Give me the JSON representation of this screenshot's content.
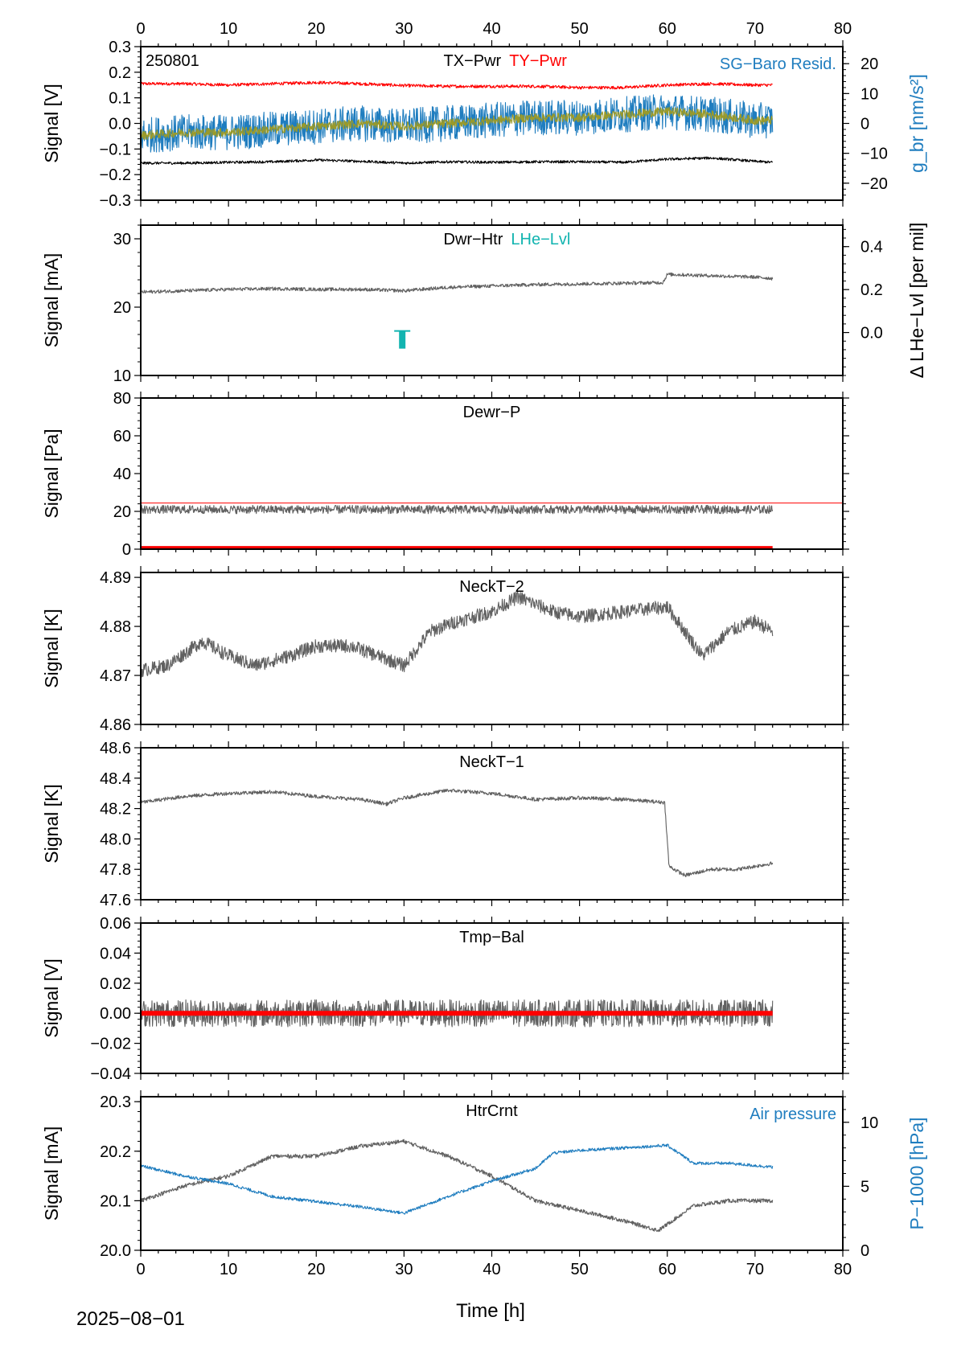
{
  "page": {
    "date_label": "2025−08−01",
    "x_axis_label": "Time [h]",
    "station_code": "250801"
  },
  "colors": {
    "gray": "#606060",
    "red": "#ff0000",
    "blue": "#1f7dbf",
    "teal": "#12b4b0",
    "olive": "#9a9a2a",
    "black": "#000000"
  },
  "chart_data": [
    {
      "id": "p1",
      "type": "line",
      "title_parts": [
        {
          "text": "TX−Pwr",
          "color": "black"
        },
        {
          "text": "TY−Pwr",
          "color": "red"
        }
      ],
      "ylabel": "Signal [V]",
      "ylim": [
        -0.3,
        0.3
      ],
      "yticks": [
        -0.3,
        -0.2,
        -0.1,
        0.0,
        0.1,
        0.2,
        0.3
      ],
      "ytick_labels": [
        "−0.3",
        "−0.2",
        "−0.1",
        "0.0",
        "0.1",
        "0.2",
        "0.3"
      ],
      "ylabel2": "g_br [nm/s²]",
      "y2lim": [
        -25.7,
        25.7
      ],
      "y2ticks": [
        -20,
        -10,
        0,
        10,
        20
      ],
      "y2tick_labels": [
        "−20",
        "−10",
        "0",
        "10",
        "20"
      ],
      "right_legend": "SG−Baro Resid.",
      "corner_text": "250801",
      "xlim": [
        0,
        80
      ],
      "series": [
        {
          "name": "TY−Pwr",
          "color": "red",
          "axis": "left",
          "x": [
            0,
            5,
            10,
            15,
            20,
            25,
            30,
            35,
            40,
            45,
            50,
            55,
            60,
            65,
            70,
            72
          ],
          "y": [
            0.155,
            0.155,
            0.15,
            0.155,
            0.16,
            0.155,
            0.148,
            0.145,
            0.145,
            0.145,
            0.14,
            0.14,
            0.15,
            0.155,
            0.15,
            0.15
          ],
          "noise": 0.006
        },
        {
          "name": "TX−Pwr",
          "color": "black",
          "axis": "left",
          "x": [
            0,
            5,
            10,
            15,
            20,
            25,
            30,
            35,
            40,
            45,
            50,
            55,
            60,
            65,
            70,
            72
          ],
          "y": [
            -0.155,
            -0.155,
            -0.152,
            -0.15,
            -0.143,
            -0.148,
            -0.155,
            -0.15,
            -0.152,
            -0.15,
            -0.15,
            -0.152,
            -0.14,
            -0.135,
            -0.148,
            -0.152
          ],
          "noise": 0.005
        },
        {
          "name": "SG−Baro Resid.",
          "color": "blue",
          "axis": "right",
          "x": [
            0,
            5,
            10,
            15,
            20,
            25,
            30,
            35,
            40,
            45,
            50,
            55,
            60,
            65,
            70,
            72
          ],
          "y": [
            -4,
            -3,
            -3,
            -2,
            -1,
            0,
            -1,
            0,
            1,
            2,
            2,
            3,
            4,
            3,
            1,
            1
          ],
          "noise": 6
        },
        {
          "name": "fit",
          "color": "olive",
          "axis": "right",
          "x": [
            0,
            5,
            10,
            15,
            20,
            25,
            30,
            35,
            40,
            45,
            50,
            55,
            60,
            65,
            70,
            72
          ],
          "y": [
            -4,
            -3,
            -3,
            -2,
            -1,
            0,
            -1,
            0,
            1,
            2,
            2,
            3,
            4,
            3,
            1,
            1
          ],
          "noise": 1.5
        }
      ]
    },
    {
      "id": "p2",
      "type": "line",
      "title_parts": [
        {
          "text": "Dwr−Htr",
          "color": "black"
        },
        {
          "text": "LHe−Lvl",
          "color": "teal"
        }
      ],
      "ylabel": "Signal [mA]",
      "ylim": [
        10,
        32
      ],
      "yticks": [
        10,
        20,
        30
      ],
      "ytick_labels": [
        "10",
        "20",
        "30"
      ],
      "ylabel2": "Δ LHe−Lvl [per mil]",
      "y2lim": [
        -0.2,
        0.5
      ],
      "y2ticks": [
        0.0,
        0.2,
        0.4
      ],
      "y2tick_labels": [
        "0.0",
        "0.2",
        "0.4"
      ],
      "xlim": [
        0,
        80
      ],
      "series": [
        {
          "name": "Dwr−Htr",
          "color": "gray",
          "axis": "left",
          "x": [
            0,
            5,
            10,
            15,
            20,
            25,
            30,
            35,
            40,
            45,
            50,
            55,
            59.5,
            60,
            65,
            70,
            72
          ],
          "y": [
            22.2,
            22.4,
            22.6,
            22.7,
            22.6,
            22.6,
            22.4,
            22.9,
            23.1,
            23.3,
            23.4,
            23.5,
            23.6,
            24.8,
            24.6,
            24.4,
            24.2
          ],
          "noise": 0.25
        },
        {
          "name": "LHe−Lvl",
          "color": "teal",
          "axis": "right",
          "x": [
            29.8
          ],
          "y": [
            -0.06
          ]
        }
      ]
    },
    {
      "id": "p3",
      "type": "line",
      "title_parts": [
        {
          "text": "Dewr−P",
          "color": "black"
        }
      ],
      "ylabel": "Signal [Pa]",
      "ylim": [
        0,
        80
      ],
      "yticks": [
        0,
        20,
        40,
        60,
        80
      ],
      "ytick_labels": [
        "0",
        "20",
        "40",
        "60",
        "80"
      ],
      "xlim": [
        0,
        80
      ],
      "threshold": 24.4,
      "series": [
        {
          "name": "Dewr−P",
          "color": "gray",
          "axis": "left",
          "x": [
            0,
            72
          ],
          "y": [
            21,
            21
          ],
          "noise": 2.2
        },
        {
          "name": "zero",
          "color": "red",
          "axis": "left",
          "x": [
            0,
            72
          ],
          "y": [
            0.4,
            0.4
          ]
        }
      ]
    },
    {
      "id": "p4",
      "type": "line",
      "title_parts": [
        {
          "text": "NeckT−2",
          "color": "black"
        }
      ],
      "ylabel": "Signal [K]",
      "ylim": [
        4.86,
        4.891
      ],
      "yticks": [
        4.86,
        4.87,
        4.88,
        4.89
      ],
      "ytick_labels": [
        "4.86",
        "4.87",
        "4.88",
        "4.89"
      ],
      "xlim": [
        0,
        80
      ],
      "series": [
        {
          "name": "NeckT−2",
          "color": "gray",
          "axis": "left",
          "x": [
            0,
            3,
            7,
            10,
            13,
            17,
            20,
            24,
            27,
            30,
            33,
            36,
            40,
            43,
            47,
            50,
            55,
            60,
            62,
            64,
            67,
            70,
            72
          ],
          "y": [
            4.871,
            4.872,
            4.877,
            4.874,
            4.872,
            4.874,
            4.876,
            4.876,
            4.874,
            4.872,
            4.879,
            4.881,
            4.883,
            4.886,
            4.883,
            4.882,
            4.883,
            4.884,
            4.879,
            4.874,
            4.879,
            4.881,
            4.879
          ],
          "noise": 0.0014
        }
      ]
    },
    {
      "id": "p5",
      "type": "line",
      "title_parts": [
        {
          "text": "NeckT−1",
          "color": "black"
        }
      ],
      "ylabel": "Signal [K]",
      "ylim": [
        47.6,
        48.6
      ],
      "yticks": [
        47.6,
        47.8,
        48.0,
        48.2,
        48.4,
        48.6
      ],
      "ytick_labels": [
        "47.6",
        "47.8",
        "48.0",
        "48.2",
        "48.4",
        "48.6"
      ],
      "xlim": [
        0,
        80
      ],
      "series": [
        {
          "name": "NeckT−1",
          "color": "gray",
          "axis": "left",
          "x": [
            0,
            5,
            10,
            15,
            20,
            25,
            28,
            30,
            35,
            40,
            45,
            50,
            55,
            59.7,
            60.2,
            62,
            65,
            68,
            70,
            72
          ],
          "y": [
            48.24,
            48.28,
            48.3,
            48.31,
            48.28,
            48.26,
            48.23,
            48.27,
            48.32,
            48.3,
            48.26,
            48.27,
            48.26,
            48.24,
            47.82,
            47.76,
            47.8,
            47.8,
            47.82,
            47.84
          ],
          "noise": 0.012
        }
      ]
    },
    {
      "id": "p6",
      "type": "line",
      "title_parts": [
        {
          "text": "Tmp−Bal",
          "color": "black"
        }
      ],
      "ylabel": "Signal [V]",
      "ylim": [
        -0.04,
        0.06
      ],
      "yticks": [
        -0.04,
        -0.02,
        0.0,
        0.02,
        0.04,
        0.06
      ],
      "ytick_labels": [
        "−0.04",
        "−0.02",
        "0.00",
        "0.02",
        "0.04",
        "0.06"
      ],
      "xlim": [
        0,
        80
      ],
      "series": [
        {
          "name": "Tmp−Bal",
          "color": "gray",
          "axis": "left",
          "x": [
            0,
            72
          ],
          "y": [
            0,
            0
          ],
          "noise": 0.009
        },
        {
          "name": "zero",
          "color": "red",
          "axis": "left",
          "x": [
            0,
            72
          ],
          "y": [
            0,
            0
          ]
        }
      ]
    },
    {
      "id": "p7",
      "type": "line",
      "title_parts": [
        {
          "text": "HtrCrnt",
          "color": "black"
        }
      ],
      "ylabel": "Signal [mA]",
      "ylim": [
        20.0,
        20.31
      ],
      "yticks": [
        20.0,
        20.1,
        20.2,
        20.3
      ],
      "ytick_labels": [
        "20.0",
        "20.1",
        "20.2",
        "20.3"
      ],
      "ylabel2": "P−1000 [hPa]",
      "y2lim": [
        0,
        12
      ],
      "y2ticks": [
        0,
        5,
        10
      ],
      "y2tick_labels": [
        "0",
        "5",
        "10"
      ],
      "right_legend": "Air pressure",
      "xlim": [
        0,
        80
      ],
      "xticks": [
        0,
        10,
        20,
        30,
        40,
        50,
        60,
        70,
        80
      ],
      "xtick_labels": [
        "0",
        "10",
        "20",
        "30",
        "40",
        "50",
        "60",
        "70",
        "80"
      ],
      "series": [
        {
          "name": "HtrCrnt",
          "color": "gray",
          "axis": "left",
          "x": [
            0,
            5,
            10,
            15,
            20,
            25,
            30,
            35,
            40,
            45,
            50,
            55,
            59,
            63,
            67,
            72
          ],
          "y": [
            20.1,
            20.13,
            20.15,
            20.19,
            20.19,
            20.21,
            20.22,
            20.19,
            20.15,
            20.1,
            20.08,
            20.06,
            20.04,
            20.09,
            20.1,
            20.1
          ],
          "noise": 0.004
        },
        {
          "name": "Air pressure",
          "color": "blue",
          "axis": "right",
          "x": [
            0,
            5,
            10,
            15,
            20,
            25,
            30,
            35,
            40,
            45,
            47,
            50,
            55,
            60,
            63,
            67,
            72
          ],
          "y": [
            6.6,
            5.8,
            5.2,
            4.2,
            3.8,
            3.4,
            2.9,
            4.2,
            5.4,
            6.4,
            7.6,
            7.8,
            8.0,
            8.2,
            6.8,
            6.8,
            6.5
          ],
          "noise": 0.12
        }
      ]
    }
  ],
  "top_axis": {
    "xticks": [
      0,
      10,
      20,
      30,
      40,
      50,
      60,
      70,
      80
    ],
    "xtick_labels": [
      "0",
      "10",
      "20",
      "30",
      "40",
      "50",
      "60",
      "70",
      "80"
    ]
  }
}
